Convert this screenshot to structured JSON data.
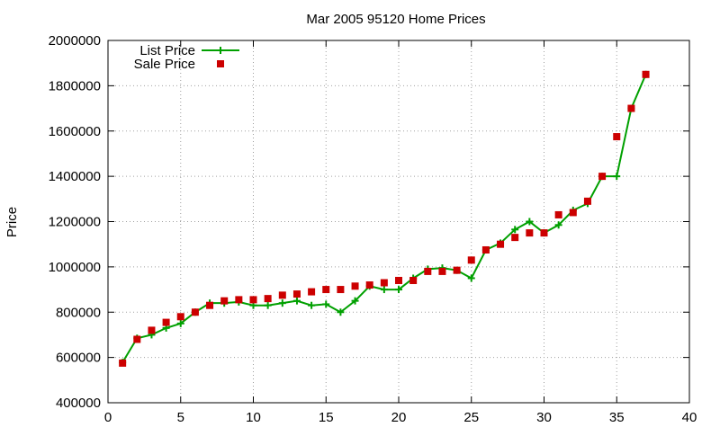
{
  "chart_data": {
    "type": "line",
    "title": "Mar 2005 95120 Home Prices",
    "xlabel": "",
    "ylabel": "Price",
    "xlim": [
      0,
      40
    ],
    "ylim": [
      400000,
      2000000
    ],
    "xticks": [
      "0",
      "5",
      "10",
      "15",
      "20",
      "25",
      "30",
      "35",
      "40"
    ],
    "yticks": [
      "400000",
      "600000",
      "800000",
      "1000000",
      "1200000",
      "1400000",
      "1600000",
      "1800000",
      "2000000"
    ],
    "grid": true,
    "legend_position": "top-left",
    "series": [
      {
        "name": "List Price",
        "style": "line-with-plus-markers",
        "color": "#00a000",
        "x": [
          1,
          2,
          3,
          4,
          5,
          6,
          7,
          8,
          9,
          10,
          11,
          12,
          13,
          14,
          15,
          16,
          17,
          18,
          19,
          20,
          21,
          22,
          23,
          24,
          25,
          26,
          27,
          28,
          29,
          30,
          31,
          32,
          33,
          34,
          35,
          36,
          37
        ],
        "y": [
          578000,
          685000,
          700000,
          730000,
          750000,
          800000,
          840000,
          840000,
          845000,
          830000,
          830000,
          840000,
          850000,
          830000,
          835000,
          800000,
          850000,
          915000,
          900000,
          900000,
          950000,
          990000,
          995000,
          985000,
          950000,
          1075000,
          1105000,
          1165000,
          1200000,
          1150000,
          1185000,
          1250000,
          1280000,
          1400000,
          1400000,
          1700000,
          1850000
        ]
      },
      {
        "name": "Sale Price",
        "style": "square-markers",
        "color": "#cc0000",
        "x": [
          1,
          2,
          3,
          4,
          5,
          6,
          7,
          8,
          9,
          10,
          11,
          12,
          13,
          14,
          15,
          16,
          17,
          18,
          19,
          20,
          21,
          22,
          23,
          24,
          25,
          26,
          27,
          28,
          29,
          30,
          31,
          32,
          33,
          34,
          35,
          36,
          37
        ],
        "y": [
          575000,
          680000,
          720000,
          755000,
          780000,
          800000,
          830000,
          850000,
          855000,
          855000,
          860000,
          875000,
          880000,
          890000,
          900000,
          900000,
          915000,
          920000,
          930000,
          940000,
          940000,
          980000,
          980000,
          985000,
          1030000,
          1075000,
          1100000,
          1130000,
          1150000,
          1150000,
          1230000,
          1240000,
          1290000,
          1400000,
          1575000,
          1700000,
          1850000
        ]
      }
    ]
  }
}
